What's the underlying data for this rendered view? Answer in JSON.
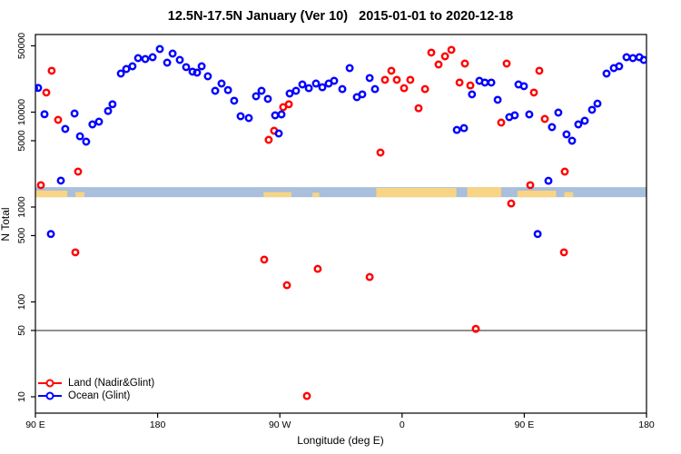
{
  "chart_data": {
    "type": "scatter",
    "title": "12.5N-17.5N January (Ver 10)   2015-01-01 to 2020-12-18",
    "xlabel": "Longitude (deg E)",
    "ylabel": "N Total",
    "x_axis": {
      "range_deg": [
        90,
        540
      ],
      "ticks": [
        {
          "lon": 90,
          "label": "90 E"
        },
        {
          "lon": 180,
          "label": "180"
        },
        {
          "lon": 270,
          "label": "90 W"
        },
        {
          "lon": 360,
          "label": "0"
        },
        {
          "lon": 450,
          "label": "90 E"
        },
        {
          "lon": 540,
          "label": "180"
        }
      ]
    },
    "y_axis": {
      "scale": "log",
      "range": [
        6.7,
        65000
      ],
      "ticks": [
        10,
        50,
        100,
        500,
        1000,
        5000,
        10000,
        50000
      ]
    },
    "hline_value": 50,
    "legend_position": "bottom-left",
    "colors": {
      "land": "#ff0000",
      "ocean": "#0000ff",
      "map_ocean": "#a9bfdb",
      "map_land": "#f8d584",
      "hline": "#222222",
      "axis": "#000000"
    },
    "map_band": {
      "desc": "world-map strip for 12.5N-17.5N latitude band",
      "N_top": 1620,
      "N_bottom": 1270,
      "land_patches_lon": [
        [
          90,
          113.5,
          0.35
        ],
        [
          119.5,
          126,
          0.5
        ],
        [
          258,
          278.5,
          0.5
        ],
        [
          294,
          299,
          0.55
        ],
        [
          341,
          400,
          0.08
        ],
        [
          408,
          433,
          0.0
        ],
        [
          445,
          473.5,
          0.35
        ],
        [
          479.5,
          486,
          0.5
        ]
      ]
    },
    "series": [
      {
        "name": "Land (Nadir&Glint)",
        "color": "#ff0000",
        "points": [
          [
            94,
            1700
          ],
          [
            98,
            16100
          ],
          [
            102,
            27300
          ],
          [
            106.7,
            8300
          ],
          [
            119.4,
            333
          ],
          [
            121.4,
            2360
          ],
          [
            258.5,
            279
          ],
          [
            261.8,
            5110
          ],
          [
            265.8,
            6370
          ],
          [
            272.5,
            11300
          ],
          [
            275.2,
            150
          ],
          [
            276.6,
            12100
          ],
          [
            289.9,
            10.2
          ],
          [
            297.9,
            223
          ],
          [
            336.1,
            183
          ],
          [
            344.1,
            3750
          ],
          [
            347.4,
            21900
          ],
          [
            352.1,
            27300
          ],
          [
            356.1,
            21900
          ],
          [
            361.5,
            17900
          ],
          [
            366.1,
            21900
          ],
          [
            372.2,
            11000
          ],
          [
            376.9,
            17500
          ],
          [
            381.5,
            42400
          ],
          [
            386.9,
            31800
          ],
          [
            391.6,
            38800
          ],
          [
            396.3,
            45300
          ],
          [
            402.3,
            20500
          ],
          [
            406.3,
            32500
          ],
          [
            410.3,
            19100
          ],
          [
            414.3,
            52
          ],
          [
            433,
            7760
          ],
          [
            437,
            32500
          ],
          [
            440.4,
            1090
          ],
          [
            454.4,
            1700
          ],
          [
            457.1,
            16100
          ],
          [
            461.1,
            27300
          ],
          [
            465.1,
            8470
          ],
          [
            479.2,
            333
          ],
          [
            479.8,
            2360
          ]
        ]
      },
      {
        "name": "Ocean (Glint)",
        "color": "#0000ff",
        "points": [
          [
            89,
            17900
          ],
          [
            92,
            18000
          ],
          [
            96.7,
            9500
          ],
          [
            101.4,
            520
          ],
          [
            108.7,
            1900
          ],
          [
            112,
            6650
          ],
          [
            118.8,
            9680
          ],
          [
            122.8,
            5570
          ],
          [
            127.4,
            4890
          ],
          [
            132,
            7430
          ],
          [
            136.8,
            7940
          ],
          [
            143.5,
            10300
          ],
          [
            146.8,
            12100
          ],
          [
            152.9,
            25500
          ],
          [
            156.9,
            28500
          ],
          [
            161.5,
            30400
          ],
          [
            165.6,
            37100
          ],
          [
            170.9,
            36300
          ],
          [
            176.3,
            37900
          ],
          [
            181.6,
            46200
          ],
          [
            187,
            33200
          ],
          [
            191,
            41400
          ],
          [
            196.3,
            35500
          ],
          [
            201,
            29800
          ],
          [
            205.7,
            26700
          ],
          [
            209,
            26100
          ],
          [
            212.4,
            30400
          ],
          [
            217,
            23900
          ],
          [
            222.4,
            16800
          ],
          [
            227.1,
            20000
          ],
          [
            231.8,
            17100
          ],
          [
            236.4,
            13200
          ],
          [
            241.1,
            9060
          ],
          [
            247.1,
            8670
          ],
          [
            252.5,
            14700
          ],
          [
            256.5,
            16800
          ],
          [
            261.2,
            13800
          ],
          [
            266.5,
            9250
          ],
          [
            269.2,
            5960
          ],
          [
            271.2,
            9460
          ],
          [
            277.2,
            15700
          ],
          [
            281.9,
            16800
          ],
          [
            286.6,
            19600
          ],
          [
            291.3,
            17900
          ],
          [
            296.6,
            20000
          ],
          [
            301.3,
            18300
          ],
          [
            306,
            20000
          ],
          [
            310,
            21400
          ],
          [
            316,
            17500
          ],
          [
            321.4,
            29100
          ],
          [
            326.7,
            14400
          ],
          [
            330.7,
            15400
          ],
          [
            336.1,
            22900
          ],
          [
            340.1,
            17500
          ],
          [
            400.3,
            6500
          ],
          [
            405.6,
            6790
          ],
          [
            411.5,
            15400
          ],
          [
            417,
            21400
          ],
          [
            421,
            20500
          ],
          [
            425.7,
            20500
          ],
          [
            430.4,
            13500
          ],
          [
            439,
            8850
          ],
          [
            443,
            9250
          ],
          [
            445.7,
            19600
          ],
          [
            449.7,
            18800
          ],
          [
            453.7,
            9460
          ],
          [
            459.8,
            520
          ],
          [
            467.8,
            1890
          ],
          [
            470.4,
            6950
          ],
          [
            475.1,
            9890
          ],
          [
            481.1,
            5830
          ],
          [
            485.2,
            5000
          ],
          [
            489.8,
            7430
          ],
          [
            494.5,
            8110
          ],
          [
            499.9,
            10600
          ],
          [
            503.9,
            12300
          ],
          [
            510.6,
            25500
          ],
          [
            515.9,
            29100
          ],
          [
            519.9,
            30400
          ],
          [
            525.3,
            37900
          ],
          [
            530,
            37100
          ],
          [
            534.7,
            37900
          ],
          [
            538,
            35500
          ]
        ]
      }
    ]
  }
}
